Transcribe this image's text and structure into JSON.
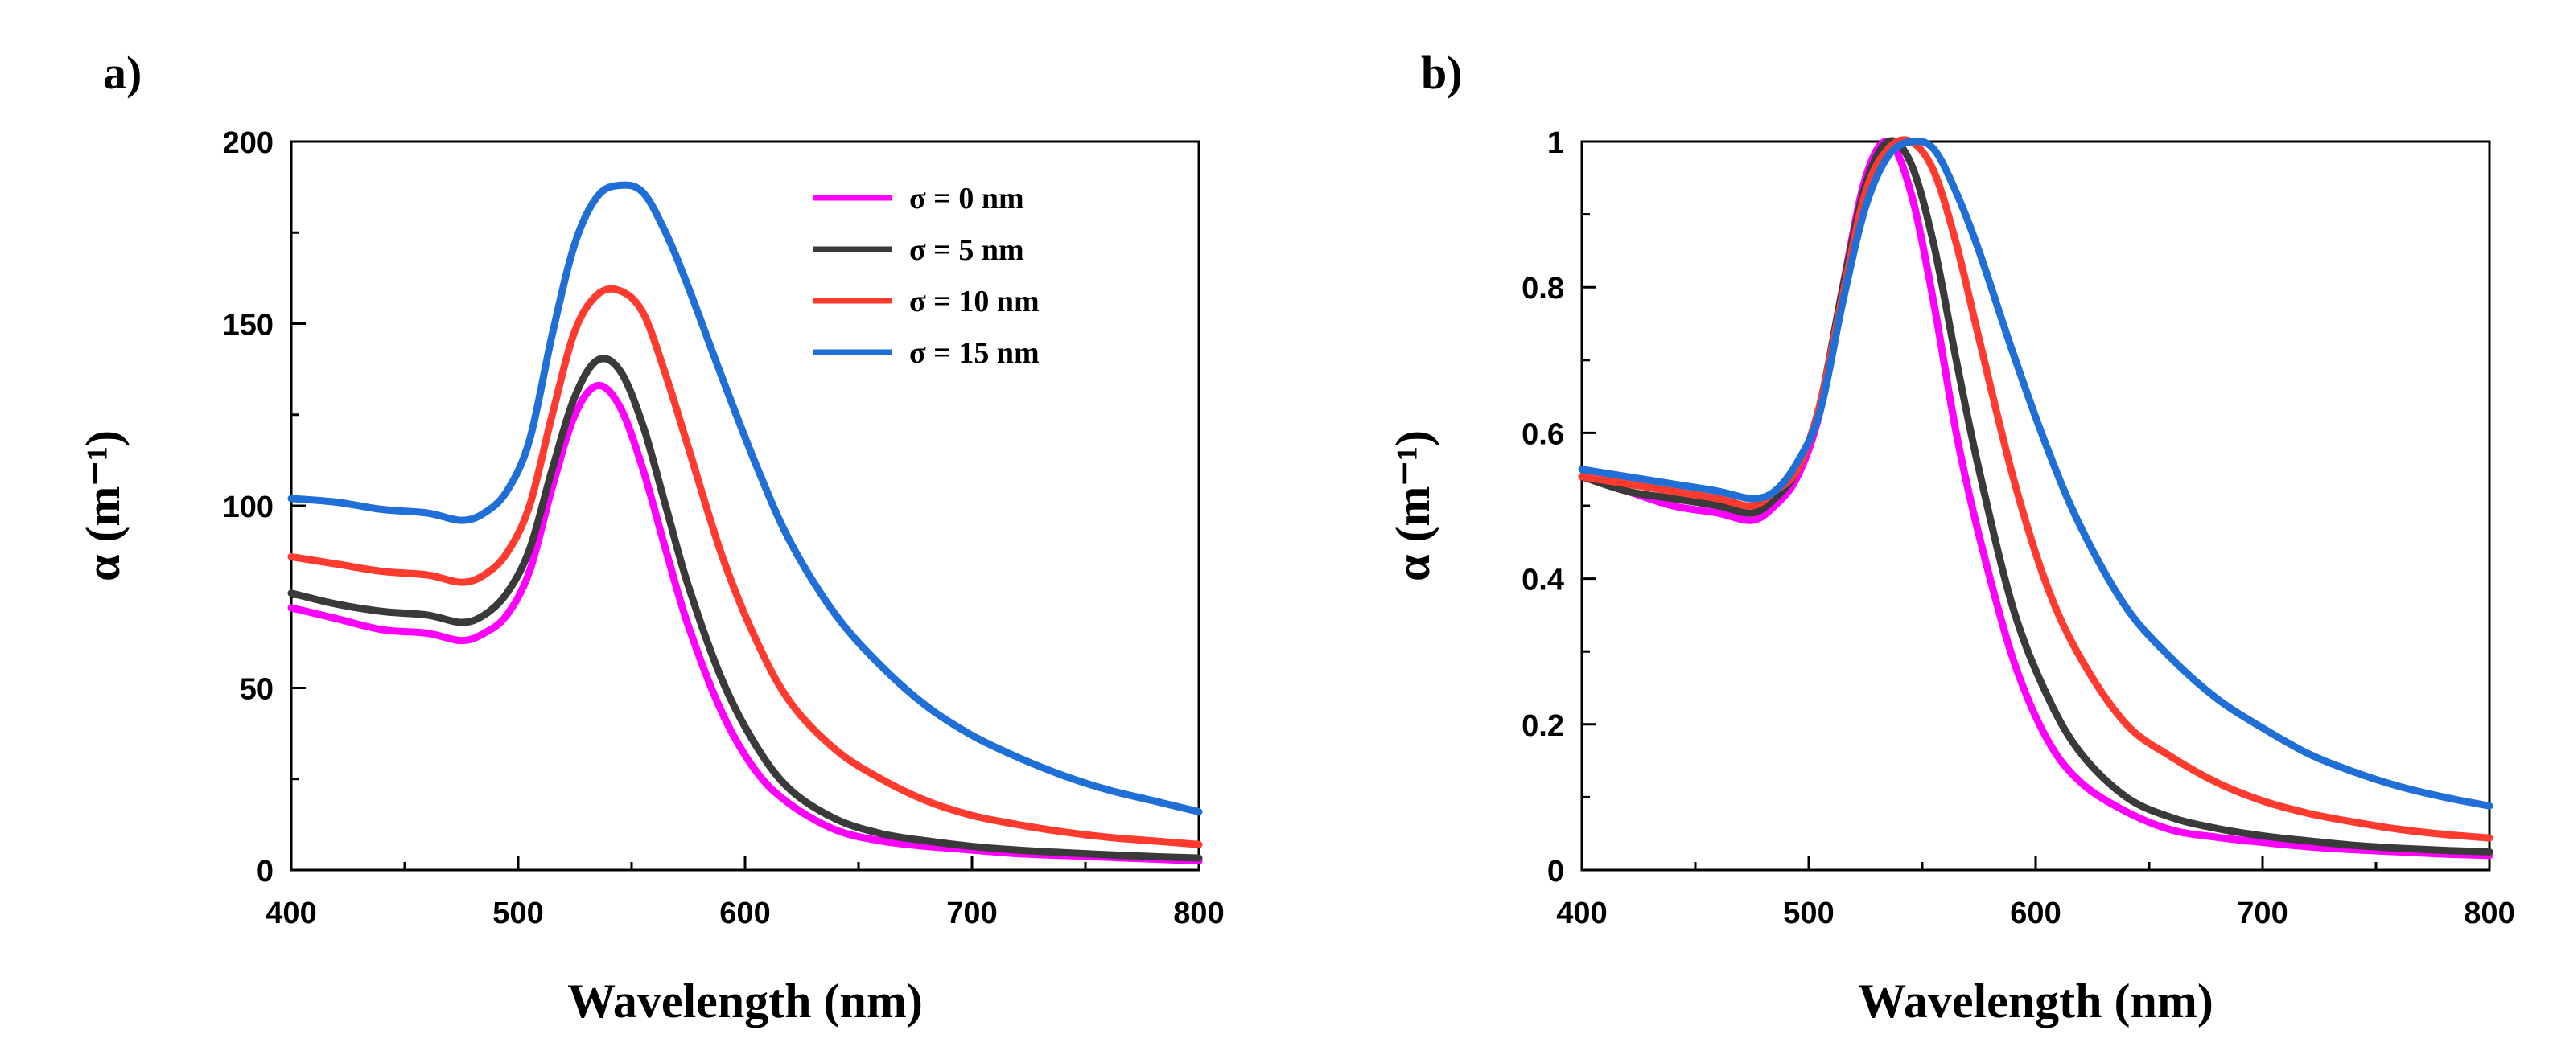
{
  "colors": {
    "s0": "#ff00ff",
    "s5": "#3a3a3a",
    "s10": "#ff3b30",
    "s15": "#1f6fd6"
  },
  "panel_labels": {
    "a": "a",
    "b": "b"
  },
  "chart_data": [
    {
      "type": "line",
      "panel": "a",
      "title": "",
      "xlabel": "Wavelength (nm)",
      "ylabel": "α (m⁻¹)",
      "xlim": [
        400,
        800
      ],
      "ylim": [
        0,
        200
      ],
      "xticks": [
        400,
        500,
        600,
        700,
        800
      ],
      "yticks": [
        0,
        50,
        100,
        150,
        200
      ],
      "xtick_labels": [
        "400",
        "500",
        "600",
        "700",
        "800"
      ],
      "ytick_labels": [
        "0",
        "50",
        "100",
        "150",
        "200"
      ],
      "legend_position": "top-right",
      "x": [
        400,
        420,
        440,
        460,
        475,
        485,
        495,
        505,
        515,
        525,
        535,
        545,
        555,
        565,
        575,
        590,
        605,
        620,
        640,
        660,
        680,
        700,
        720,
        740,
        760,
        780,
        800
      ],
      "series": [
        {
          "name": "σ = 0 nm",
          "color_key": "s0",
          "values": [
            72,
            69,
            66,
            65,
            63,
            65,
            70,
            82,
            105,
            125,
            133,
            127,
            110,
            88,
            67,
            43,
            27,
            18,
            11,
            8,
            6.5,
            5.5,
            4.5,
            4,
            3.5,
            3,
            2.5
          ]
        },
        {
          "name": "σ = 5 nm",
          "color_key": "s5",
          "values": [
            76,
            73,
            71,
            70,
            68,
            70,
            76,
            88,
            110,
            130,
            140,
            137,
            122,
            100,
            78,
            52,
            34,
            22,
            14,
            10,
            8,
            6.5,
            5.5,
            4.8,
            4.2,
            3.7,
            3.3
          ]
        },
        {
          "name": "σ = 10 nm",
          "color_key": "s10",
          "values": [
            86,
            84,
            82,
            81,
            79,
            81,
            87,
            100,
            125,
            148,
            158,
            159,
            153,
            136,
            116,
            86,
            63,
            46,
            33,
            25,
            19,
            15,
            12.5,
            10.5,
            9,
            8,
            7
          ]
        },
        {
          "name": "σ = 15 nm",
          "color_key": "s15",
          "values": [
            102,
            101,
            99,
            98,
            96,
            98,
            104,
            118,
            147,
            172,
            185,
            188,
            186,
            175,
            160,
            135,
            111,
            90,
            70,
            56,
            45,
            37,
            31,
            26,
            22,
            19,
            16
          ]
        }
      ]
    },
    {
      "type": "line",
      "panel": "b",
      "title": "",
      "xlabel": "Wavelength (nm)",
      "ylabel": "α (m⁻¹)",
      "xlim": [
        400,
        800
      ],
      "ylim": [
        0,
        1
      ],
      "xticks": [
        400,
        500,
        600,
        700,
        800
      ],
      "yticks": [
        0,
        0.2,
        0.4,
        0.6,
        0.8,
        1
      ],
      "xtick_labels": [
        "400",
        "500",
        "600",
        "700",
        "800"
      ],
      "ytick_labels": [
        "0",
        "0.2",
        "0.4",
        "0.6",
        "0.8",
        "1"
      ],
      "x": [
        400,
        420,
        440,
        460,
        475,
        485,
        495,
        505,
        515,
        525,
        535,
        545,
        555,
        565,
        575,
        590,
        605,
        620,
        640,
        660,
        680,
        700,
        720,
        740,
        760,
        780,
        800
      ],
      "series": [
        {
          "name": "σ = 0 nm",
          "color_key": "s0",
          "values": [
            0.54,
            0.52,
            0.5,
            0.49,
            0.48,
            0.5,
            0.54,
            0.63,
            0.8,
            0.95,
            1.0,
            0.93,
            0.78,
            0.6,
            0.46,
            0.29,
            0.18,
            0.12,
            0.08,
            0.055,
            0.045,
            0.038,
            0.032,
            0.028,
            0.025,
            0.022,
            0.02
          ]
        },
        {
          "name": "σ = 5 nm",
          "color_key": "s5",
          "values": [
            0.54,
            0.52,
            0.51,
            0.5,
            0.49,
            0.51,
            0.55,
            0.64,
            0.8,
            0.94,
            1.0,
            0.97,
            0.86,
            0.7,
            0.55,
            0.36,
            0.24,
            0.16,
            0.1,
            0.072,
            0.057,
            0.047,
            0.04,
            0.034,
            0.03,
            0.027,
            0.025
          ]
        },
        {
          "name": "σ = 10 nm",
          "color_key": "s10",
          "values": [
            0.54,
            0.53,
            0.52,
            0.51,
            0.5,
            0.52,
            0.55,
            0.64,
            0.79,
            0.93,
            0.99,
            1.0,
            0.96,
            0.86,
            0.73,
            0.54,
            0.39,
            0.29,
            0.2,
            0.155,
            0.12,
            0.095,
            0.078,
            0.066,
            0.056,
            0.049,
            0.044
          ]
        },
        {
          "name": "σ = 15 nm",
          "color_key": "s15",
          "values": [
            0.55,
            0.54,
            0.53,
            0.52,
            0.51,
            0.52,
            0.56,
            0.63,
            0.78,
            0.91,
            0.98,
            1.0,
            0.99,
            0.93,
            0.85,
            0.71,
            0.58,
            0.47,
            0.36,
            0.29,
            0.235,
            0.195,
            0.16,
            0.135,
            0.115,
            0.1,
            0.088
          ]
        }
      ]
    }
  ]
}
